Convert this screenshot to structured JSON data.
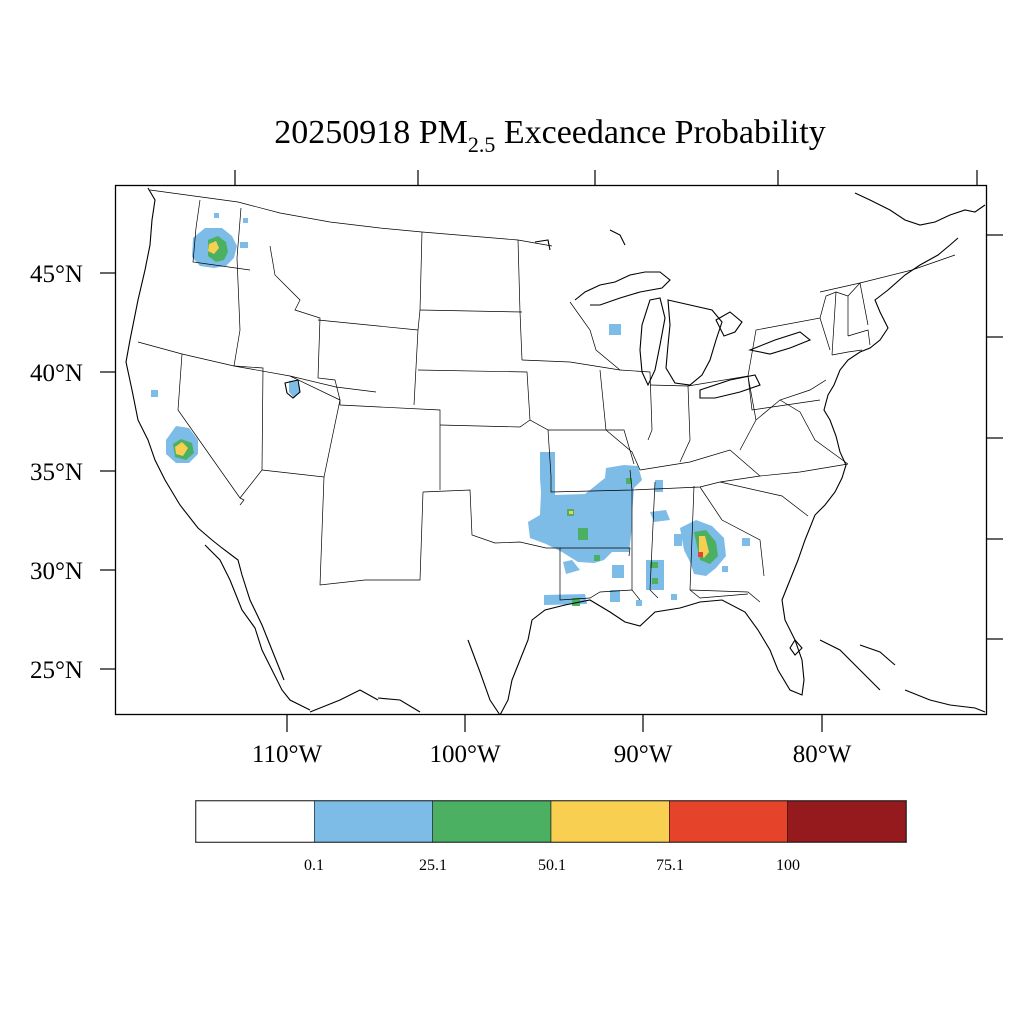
{
  "title": {
    "prefix": "20250918 PM",
    "subscript": "2.5",
    "suffix": " Exceedance Probability"
  },
  "map": {
    "projection": "lambert-conformal",
    "region": "Contiguous United States",
    "lat_ticks": [
      "45°N",
      "40°N",
      "35°N",
      "30°N",
      "25°N"
    ],
    "lon_ticks": [
      "110°W",
      "100°W",
      "90°W",
      "80°W"
    ],
    "features": [
      "state-borders",
      "coastlines",
      "great-lakes"
    ],
    "probability_areas": [
      {
        "region": "Washington / Idaho",
        "max_level": "50.1–75.1"
      },
      {
        "region": "Central California",
        "max_level": "50.1–75.1"
      },
      {
        "region": "Arkansas / Louisiana / Mississippi",
        "max_level": "25.1–50.1"
      },
      {
        "region": "Alabama",
        "max_level": "50.1–75.1"
      },
      {
        "region": "Wisconsin",
        "max_level": "0.1–25.1"
      },
      {
        "region": "Utah",
        "max_level": "0.1–25.1"
      }
    ]
  },
  "colorbar": {
    "colors": [
      "#ffffff",
      "#7dbce7",
      "#4bb062",
      "#f9cf52",
      "#e5432a",
      "#951a1d"
    ],
    "labels": [
      "0.1",
      "25.1",
      "50.1",
      "75.1",
      "100"
    ]
  }
}
